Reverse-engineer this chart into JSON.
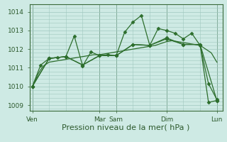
{
  "bg_color": "#ceeae4",
  "grid_color": "#a0c8bf",
  "line_color": "#2d6e2d",
  "xlabel": "Pression niveau de la mer( hPa )",
  "xlabel_fontsize": 8,
  "ylim": [
    1008.7,
    1014.4
  ],
  "yticks": [
    1009,
    1010,
    1011,
    1012,
    1013,
    1014
  ],
  "xtick_labels": [
    "Ven",
    "Mar",
    "Sam",
    "Dim",
    "Lun"
  ],
  "xtick_positions": [
    0,
    24,
    30,
    48,
    66
  ],
  "vlines": [
    0,
    24,
    30,
    48,
    66
  ],
  "xlim": [
    -1,
    68
  ],
  "line1_x": [
    0,
    1,
    2,
    3,
    4,
    5,
    6,
    8,
    10,
    12,
    14,
    16,
    18,
    20,
    22,
    24,
    26,
    28,
    30,
    32,
    34,
    36,
    38,
    40,
    42,
    44,
    46,
    48,
    50,
    52,
    54,
    56,
    58,
    60,
    62,
    64,
    66
  ],
  "line1_y": [
    1010.0,
    1010.3,
    1010.65,
    1010.9,
    1011.1,
    1011.2,
    1011.3,
    1011.35,
    1011.4,
    1011.45,
    1011.5,
    1011.55,
    1011.6,
    1011.65,
    1011.7,
    1011.7,
    1011.75,
    1011.8,
    1011.85,
    1011.9,
    1011.95,
    1012.0,
    1012.05,
    1012.1,
    1012.15,
    1012.2,
    1012.3,
    1012.4,
    1012.45,
    1012.4,
    1012.35,
    1012.3,
    1012.25,
    1012.2,
    1012.0,
    1011.8,
    1011.3
  ],
  "line2_x": [
    0,
    3,
    6,
    9,
    12,
    15,
    18,
    21,
    24,
    27,
    30,
    33,
    36,
    39,
    42,
    45,
    48,
    51,
    54,
    57,
    60,
    63,
    66
  ],
  "line2_y": [
    1010.0,
    1011.15,
    1011.5,
    1011.55,
    1011.6,
    1012.7,
    1011.1,
    1011.85,
    1011.65,
    1011.7,
    1011.65,
    1012.9,
    1013.45,
    1013.8,
    1012.2,
    1013.1,
    1013.0,
    1012.85,
    1012.55,
    1012.85,
    1012.2,
    1010.15,
    1009.3
  ],
  "line3_x": [
    0,
    6,
    12,
    18,
    24,
    30,
    36,
    42,
    48,
    54,
    60,
    66
  ],
  "line3_y": [
    1010.0,
    1011.5,
    1011.6,
    1011.15,
    1011.65,
    1011.65,
    1012.25,
    1012.2,
    1012.55,
    1012.25,
    1012.25,
    1009.25
  ],
  "line4_x": [
    0,
    6,
    12,
    18,
    24,
    30,
    36,
    42,
    48,
    54,
    60,
    63,
    66
  ],
  "line4_y": [
    1010.0,
    1011.5,
    1011.6,
    1011.15,
    1011.65,
    1011.65,
    1012.25,
    1012.2,
    1012.6,
    1012.25,
    1012.25,
    1009.15,
    1009.25
  ]
}
